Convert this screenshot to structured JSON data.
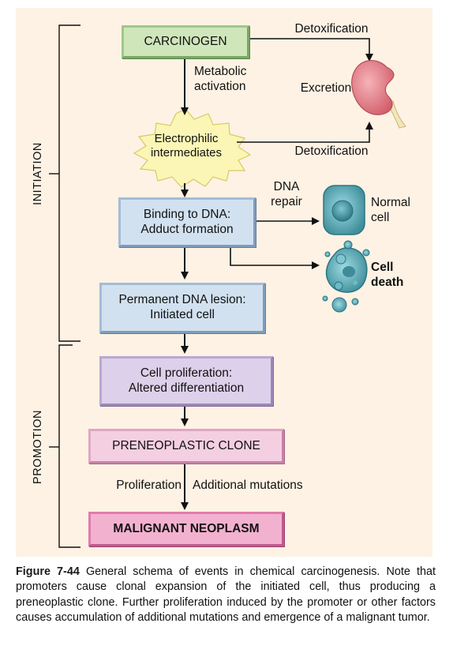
{
  "stage_labels": {
    "initiation": "INITIATION",
    "promotion": "PROMOTION"
  },
  "boxes": {
    "carcinogen": "CARCINOGEN",
    "electrophilic": "Electrophilic intermediates",
    "binding": "Binding to DNA:\nAdduct formation",
    "lesion": "Permanent DNA lesion:\nInitiated cell",
    "proliferation": "Cell proliferation:\nAltered differentiation",
    "preneoplastic": "PRENEOPLASTIC CLONE",
    "malignant": "MALIGNANT NEOPLASM"
  },
  "arrow_labels": {
    "detox_top": "Detoxification",
    "metabolic": "Metabolic\nactivation",
    "excretion": "Excretion",
    "detox_bottom": "Detoxification",
    "dna_repair": "DNA\nrepair",
    "normal_cell": "Normal\ncell",
    "cell_death": "Cell\ndeath",
    "proliferation": "Proliferation",
    "additional": "Additional mutations"
  },
  "caption": {
    "label": "Figure 7-44",
    "text": "General schema of events in chemical carcinogenesis. Note that promoters cause clonal expansion of the initiated cell, thus producing a preneoplastic clone. Further proliferation induced by the promoter or other factors causes accumulation of additional mutations and emergence of a malignant tumor."
  },
  "colors": {
    "panel_bg": "#fdf2e4",
    "carcinogen_box": "#cfe6bb",
    "dna_boxes": "#d2e1f0",
    "proliferation_box": "#ddd0ea",
    "preneoplastic_box": "#f4cfe1",
    "malignant_box": "#f3b1d0",
    "starburst": "#fbf6b5",
    "kidney": "#e6808a",
    "cell": "#5fb3bf"
  }
}
